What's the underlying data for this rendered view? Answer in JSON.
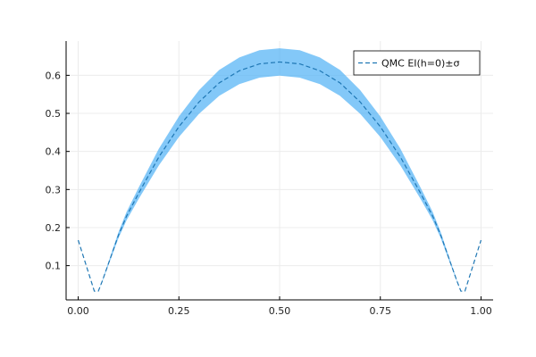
{
  "chart_data": {
    "type": "line",
    "title": "",
    "xlabel": "",
    "ylabel": "",
    "xlim": [
      -0.03,
      1.03
    ],
    "ylim": [
      0.01,
      0.69
    ],
    "grid": true,
    "legend_position": "top-right",
    "x_ticks": [
      0.0,
      0.25,
      0.5,
      0.75,
      1.0
    ],
    "x_tick_labels": [
      "0.00",
      "0.25",
      "0.50",
      "0.75",
      "1.00"
    ],
    "y_ticks": [
      0.1,
      0.2,
      0.3,
      0.4,
      0.5,
      0.6
    ],
    "y_tick_labels": [
      "0.1",
      "0.2",
      "0.3",
      "0.4",
      "0.5",
      "0.6"
    ],
    "series": [
      {
        "name": "QMC EI(h=0)±σ",
        "line_color": "#1f77b4",
        "band_color": "#4fb0f5",
        "line_style": "dashed",
        "x": [
          0.0,
          0.04,
          0.05,
          0.06,
          0.08,
          0.1,
          0.12,
          0.15,
          0.2,
          0.25,
          0.3,
          0.35,
          0.4,
          0.45,
          0.5,
          0.55,
          0.6,
          0.65,
          0.7,
          0.75,
          0.8,
          0.85,
          0.88,
          0.9,
          0.92,
          0.94,
          0.95,
          0.96,
          1.0
        ],
        "y": [
          0.167,
          0.033,
          0.033,
          0.06,
          0.12,
          0.18,
          0.23,
          0.29,
          0.385,
          0.465,
          0.53,
          0.58,
          0.612,
          0.63,
          0.635,
          0.63,
          0.612,
          0.58,
          0.53,
          0.465,
          0.385,
          0.29,
          0.23,
          0.18,
          0.12,
          0.06,
          0.033,
          0.033,
          0.167
        ],
        "sigma": [
          0.0,
          0.0,
          0.0,
          0.002,
          0.005,
          0.008,
          0.011,
          0.015,
          0.022,
          0.027,
          0.031,
          0.034,
          0.035,
          0.036,
          0.036,
          0.036,
          0.035,
          0.034,
          0.031,
          0.027,
          0.022,
          0.015,
          0.011,
          0.008,
          0.005,
          0.002,
          0.0,
          0.0,
          0.0
        ]
      }
    ]
  }
}
